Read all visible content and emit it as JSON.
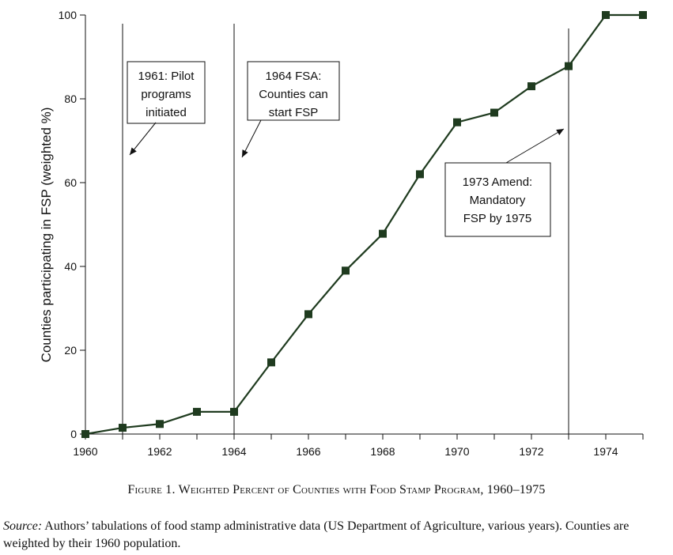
{
  "chart_data": {
    "type": "line",
    "ylabel": "Counties participating in FSP (weighted %)",
    "xlabel": "",
    "xlim": [
      1960,
      1975
    ],
    "ylim": [
      0,
      100
    ],
    "x_ticks_labeled": [
      1960,
      1962,
      1964,
      1966,
      1968,
      1970,
      1972,
      1974
    ],
    "y_ticks": [
      0,
      20,
      40,
      60,
      80,
      100
    ],
    "grid": false,
    "series": [
      {
        "color": "#1f3b1f",
        "marker": "square",
        "x": [
          1960,
          1961,
          1962,
          1963,
          1964,
          1965,
          1966,
          1967,
          1968,
          1969,
          1970,
          1971,
          1972,
          1973,
          1974,
          1975
        ],
        "y": [
          0,
          1.5,
          2.4,
          5.3,
          5.3,
          17.1,
          28.6,
          39.0,
          47.8,
          62.0,
          74.4,
          76.7,
          83.0,
          87.8,
          100,
          100
        ]
      }
    ],
    "vlines": [
      1961,
      1964,
      1973
    ],
    "annotations": [
      {
        "lines": [
          "1961: Pilot",
          "programs",
          "initiated"
        ]
      },
      {
        "lines": [
          "1964 FSA:",
          "Counties can",
          "start FSP"
        ]
      },
      {
        "lines": [
          "1973 Amend:",
          "Mandatory",
          "FSP by 1975"
        ]
      }
    ]
  },
  "caption": "Figure 1. Weighted Percent of Counties with Food Stamp Program, 1960–1975",
  "source": {
    "label": "Source:",
    "text": " Authors’ tabulations of food stamp administrative data (US Department of Agriculture, various years). Counties are weighted by their 1960 population."
  },
  "colors": {
    "line": "#1f3b1f",
    "axis": "#111111"
  }
}
